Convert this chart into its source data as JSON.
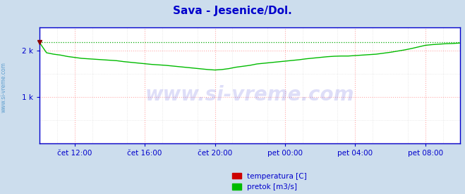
{
  "title": "Sava - Jesenice/Dol.",
  "title_color": "#0000cc",
  "title_fontsize": 11,
  "bg_color": "#ccdded",
  "plot_bg_color": "#ffffff",
  "grid_color_major": "#ffaaaa",
  "grid_color_minor": "#dddddd",
  "axis_color": "#0000cc",
  "tick_label_color": "#0000cc",
  "watermark_text": "www.si-vreme.com",
  "watermark_color": "#0000cc",
  "watermark_alpha": 0.13,
  "side_label": "www.si-vreme.com",
  "side_label_color": "#5599cc",
  "xticklabels": [
    "čet 12:00",
    "čet 16:00",
    "čet 20:00",
    "pet 00:00",
    "pet 04:00",
    "pet 08:00"
  ],
  "xtick_positions": [
    48,
    144,
    240,
    336,
    432,
    528
  ],
  "yticklabels": [
    "1 k",
    "2 k"
  ],
  "ytick_positions": [
    1000,
    2000
  ],
  "ylim": [
    0,
    2500
  ],
  "xlim": [
    0,
    576
  ],
  "pretok_color": "#00bb00",
  "pretok_max_line_color": "#00aa00",
  "pretok_max_value": 2170,
  "temperatura_color": "#cc0000",
  "legend_items": [
    {
      "label": "temperatura [C]",
      "color": "#cc0000"
    },
    {
      "label": "pretok [m3/s]",
      "color": "#00bb00"
    }
  ],
  "pretok_data_x": [
    0,
    9.6,
    19.2,
    28.8,
    38.4,
    48,
    57.6,
    67.2,
    76.8,
    86.4,
    96,
    105.6,
    115.2,
    124.8,
    134.4,
    144,
    153.6,
    163.2,
    172.8,
    182.4,
    192,
    201.6,
    211.2,
    220.8,
    230.4,
    240,
    249.6,
    259.2,
    268.8,
    278.4,
    288,
    297.6,
    307.2,
    316.8,
    326.4,
    336,
    345.6,
    355.2,
    364.8,
    374.4,
    384,
    393.6,
    403.2,
    412.8,
    422.4,
    432,
    441.6,
    451.2,
    460.8,
    470.4,
    480,
    489.6,
    499.2,
    508.8,
    518.4,
    528,
    537.6,
    547.2,
    556.8,
    566.4,
    576
  ],
  "pretok_data_y": [
    2170,
    1950,
    1920,
    1900,
    1870,
    1850,
    1830,
    1820,
    1810,
    1800,
    1790,
    1780,
    1760,
    1745,
    1730,
    1715,
    1700,
    1690,
    1680,
    1665,
    1650,
    1635,
    1620,
    1605,
    1590,
    1580,
    1590,
    1610,
    1640,
    1660,
    1680,
    1710,
    1725,
    1740,
    1755,
    1770,
    1785,
    1800,
    1820,
    1835,
    1850,
    1865,
    1875,
    1880,
    1880,
    1890,
    1900,
    1910,
    1920,
    1940,
    1960,
    1985,
    2010,
    2040,
    2075,
    2110,
    2125,
    2135,
    2145,
    2150,
    2160
  ]
}
